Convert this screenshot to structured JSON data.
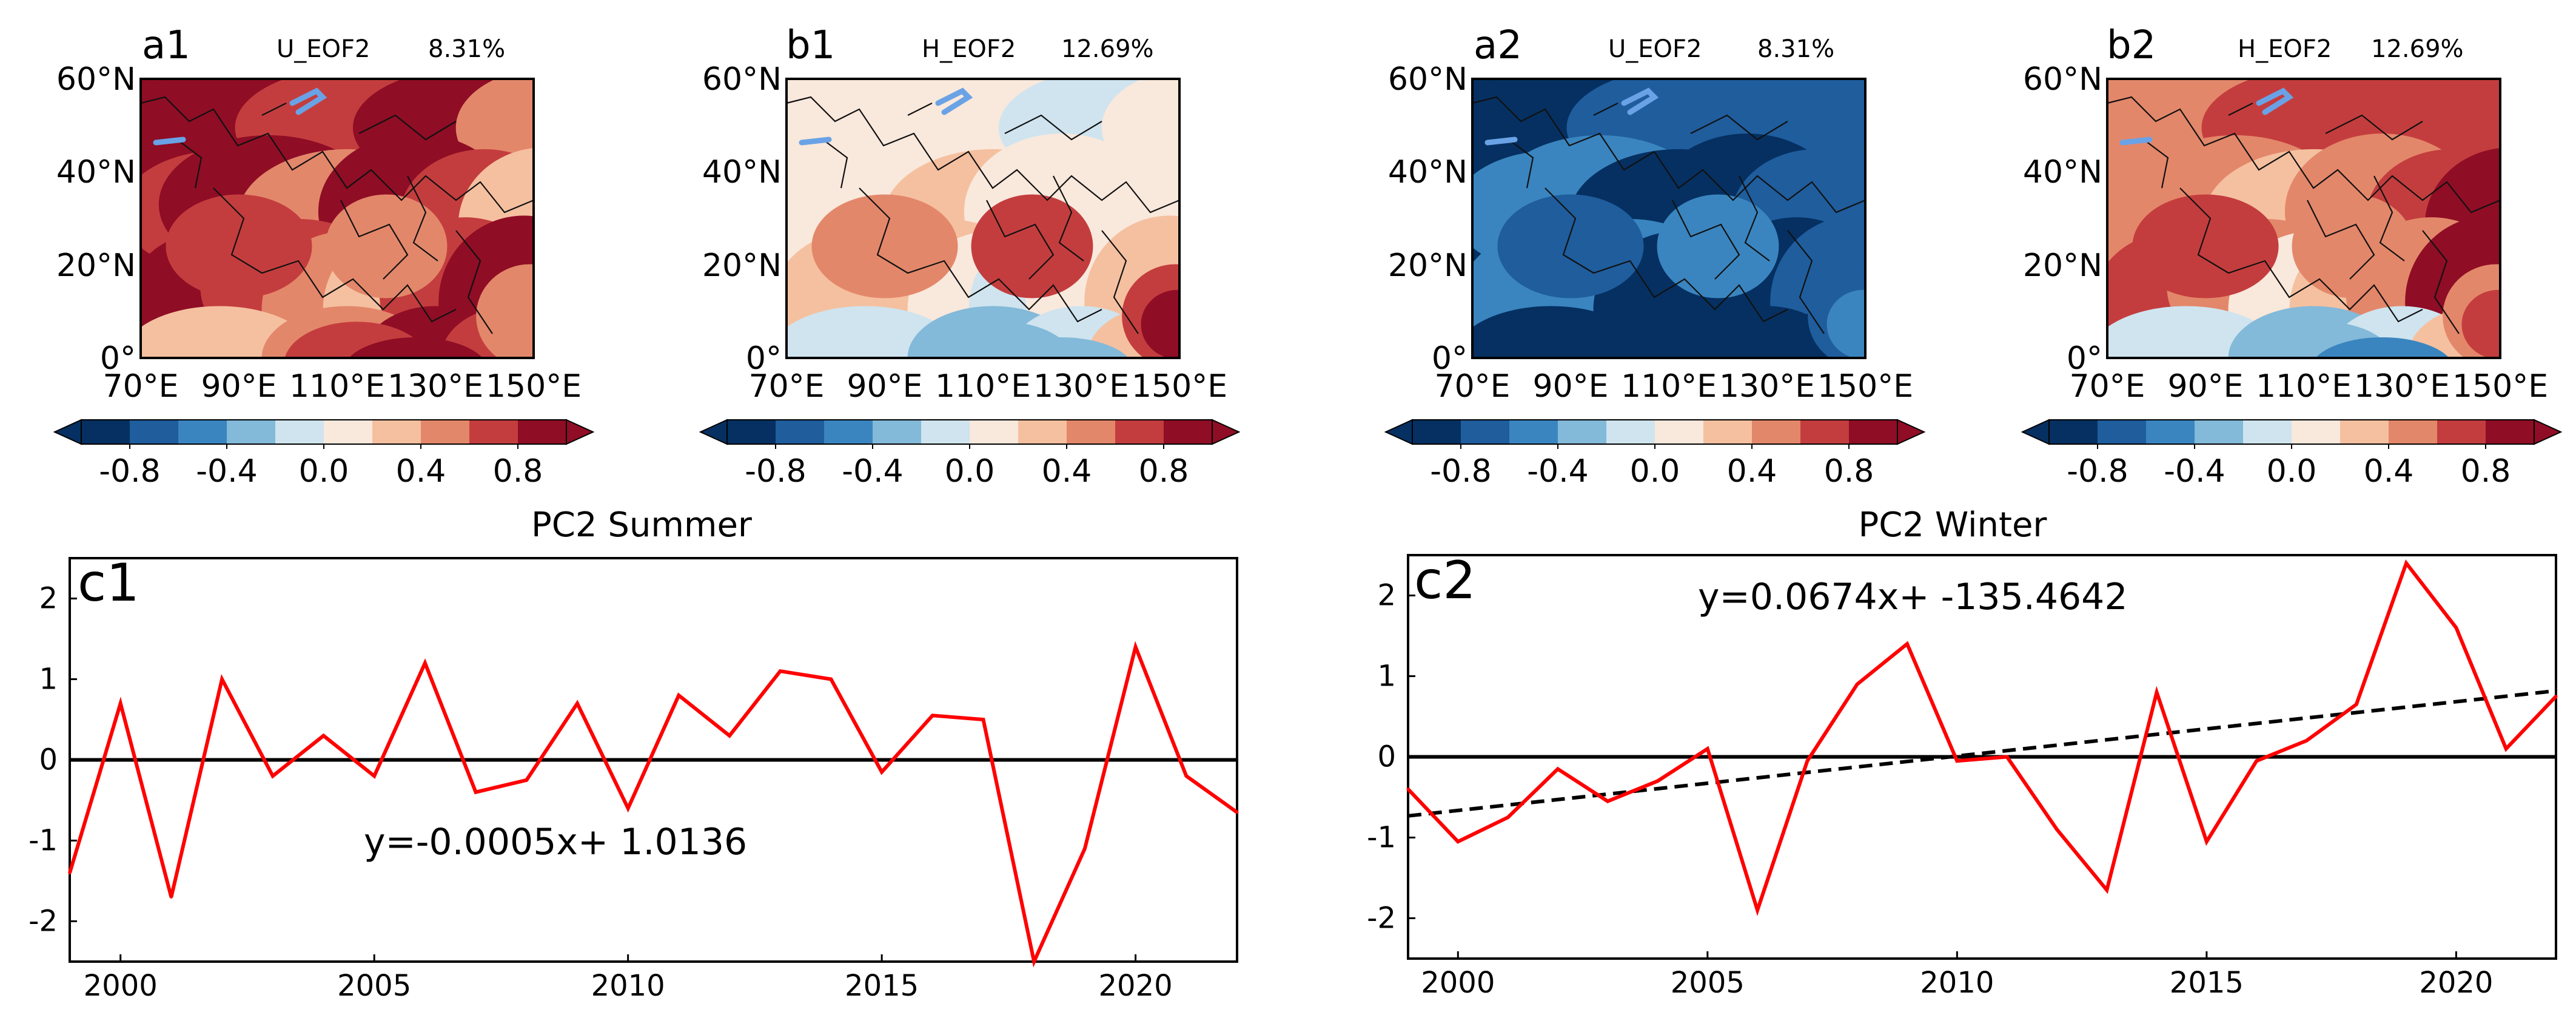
{
  "colors": {
    "scale": [
      "#053061",
      "#1f5d9d",
      "#3a85bf",
      "#83b9d9",
      "#cfe4ef",
      "#f9e8dc",
      "#f5c0a0",
      "#e3876a",
      "#c43d3e",
      "#8f0d25"
    ],
    "line": "#ff0000",
    "trend": "#000000"
  },
  "maps": {
    "x_ticks": [
      "70°E",
      "90°E",
      "110°E",
      "130°E",
      "150°E"
    ],
    "y_ticks": [
      "0°",
      "20°N",
      "40°N",
      "60°N"
    ],
    "panels": [
      {
        "id": "a1",
        "label": "a1",
        "var": "U_EOF2",
        "pct": "8.31%",
        "palette": [
          9,
          8,
          9,
          7,
          8,
          9,
          7,
          9,
          8,
          6,
          9,
          8,
          7,
          6,
          8,
          9,
          8,
          7,
          6,
          7,
          9,
          8,
          7,
          7,
          8,
          9
        ]
      },
      {
        "id": "b1",
        "label": "b1",
        "var": "H_EOF2",
        "pct": "12.69%",
        "palette": [
          5,
          5,
          4,
          5,
          5,
          5,
          6,
          5,
          5,
          5,
          6,
          6,
          5,
          4,
          5,
          6,
          7,
          8,
          4,
          3,
          4,
          6,
          8,
          9,
          3,
          3
        ]
      },
      {
        "id": "a2",
        "label": "a2",
        "var": "U_EOF2",
        "pct": "8.31%",
        "palette": [
          0,
          1,
          1,
          1,
          2,
          2,
          0,
          0,
          1,
          1,
          2,
          2,
          0,
          0,
          0,
          1,
          1,
          2,
          0,
          0,
          0,
          0,
          1,
          2,
          0,
          0
        ]
      },
      {
        "id": "b2",
        "label": "b2",
        "var": "H_EOF2",
        "pct": "12.69%",
        "palette": [
          7,
          8,
          8,
          8,
          7,
          7,
          6,
          7,
          8,
          9,
          8,
          7,
          5,
          6,
          7,
          9,
          8,
          7,
          4,
          3,
          4,
          6,
          7,
          8,
          3,
          2
        ]
      }
    ]
  },
  "colorbar": {
    "ticks": [
      "-0.8",
      "-0.4",
      "0.0",
      "0.4",
      "0.8"
    ]
  },
  "chart_data": [
    {
      "type": "line",
      "id": "c1",
      "panel_label": "c1",
      "title": "PC2 Summer",
      "x": [
        1999,
        2000,
        2001,
        2002,
        2003,
        2004,
        2005,
        2006,
        2007,
        2008,
        2009,
        2010,
        2011,
        2012,
        2013,
        2014,
        2015,
        2016,
        2017,
        2018,
        2019,
        2020,
        2021,
        2022
      ],
      "series": [
        {
          "name": "PC2 Summer",
          "values": [
            -1.4,
            0.7,
            -1.7,
            1.0,
            -0.2,
            0.3,
            -0.2,
            1.2,
            -0.4,
            -0.25,
            0.7,
            -0.6,
            0.8,
            0.3,
            1.1,
            1.0,
            -0.15,
            0.55,
            0.5,
            -2.5,
            -1.1,
            1.4,
            -0.2,
            -0.65
          ]
        }
      ],
      "trend_label": "y=-0.0005x+ 1.0136",
      "xlim": [
        1999,
        2022
      ],
      "ylim": [
        -2.5,
        2.5
      ],
      "x_ticks": [
        2000,
        2005,
        2010,
        2015,
        2020
      ],
      "y_ticks": [
        -2,
        -1,
        0,
        1,
        2
      ]
    },
    {
      "type": "line",
      "id": "c2",
      "panel_label": "c2",
      "title": "PC2 Winter",
      "x": [
        1999,
        2000,
        2001,
        2002,
        2003,
        2004,
        2005,
        2006,
        2007,
        2008,
        2009,
        2010,
        2011,
        2012,
        2013,
        2014,
        2015,
        2016,
        2017,
        2018,
        2019,
        2020,
        2021,
        2022
      ],
      "series": [
        {
          "name": "PC2 Winter",
          "values": [
            -0.4,
            -1.05,
            -0.75,
            -0.15,
            -0.55,
            -0.3,
            0.1,
            -1.9,
            -0.05,
            0.9,
            1.4,
            -0.05,
            0.0,
            -0.9,
            -1.65,
            0.8,
            -1.05,
            -0.05,
            0.2,
            0.65,
            2.4,
            1.6,
            0.1,
            0.75
          ]
        }
      ],
      "trend_label": "y=0.0674x+ -135.4642",
      "trend": {
        "slope": 0.0674,
        "intercept": -135.4642
      },
      "xlim": [
        1999,
        2022
      ],
      "ylim": [
        -2.5,
        2.5
      ],
      "x_ticks": [
        2000,
        2005,
        2010,
        2015,
        2020
      ],
      "y_ticks": [
        -2,
        -1,
        0,
        1,
        2
      ]
    }
  ]
}
